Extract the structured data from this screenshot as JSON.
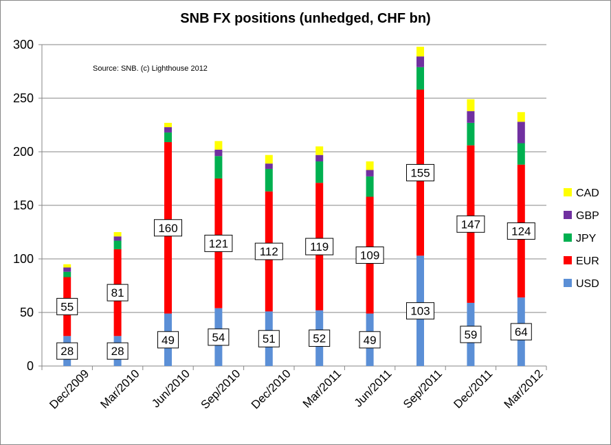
{
  "chart_data": {
    "type": "bar",
    "stacked": true,
    "title": "SNB FX positions (unhedged, CHF bn)",
    "annotation": "Source: SNB. (c) Lighthouse 2012",
    "xlabel": "",
    "ylabel": "",
    "ylim": [
      0,
      300
    ],
    "yticks": [
      0,
      50,
      100,
      150,
      200,
      250,
      300
    ],
    "grid": true,
    "legend_position": "right",
    "categories": [
      "Dec/2009",
      "Mar/2010",
      "Jun/2010",
      "Sep/2010",
      "Dec/2010",
      "Mar/2011",
      "Jun/2011",
      "Sep/2011",
      "Dec/2011",
      "Mar/2012"
    ],
    "series": [
      {
        "name": "USD",
        "color": "#5B8FD6",
        "values": [
          28,
          28,
          49,
          54,
          51,
          52,
          49,
          103,
          59,
          64
        ],
        "labeled": true
      },
      {
        "name": "EUR",
        "color": "#FF0000",
        "values": [
          55,
          81,
          160,
          121,
          112,
          119,
          109,
          155,
          147,
          124
        ],
        "labeled": true
      },
      {
        "name": "JPY",
        "color": "#00B050",
        "values": [
          5,
          8,
          9,
          21,
          21,
          20,
          19,
          21,
          21,
          20
        ],
        "labeled": false
      },
      {
        "name": "GBP",
        "color": "#7030A0",
        "values": [
          4,
          4,
          5,
          6,
          5,
          6,
          6,
          10,
          11,
          20
        ],
        "labeled": false
      },
      {
        "name": "CAD",
        "color": "#FFFF00",
        "values": [
          3,
          4,
          4,
          8,
          8,
          8,
          8,
          9,
          11,
          9
        ],
        "labeled": false
      }
    ],
    "legend_order": [
      "CAD",
      "GBP",
      "JPY",
      "EUR",
      "USD"
    ]
  }
}
